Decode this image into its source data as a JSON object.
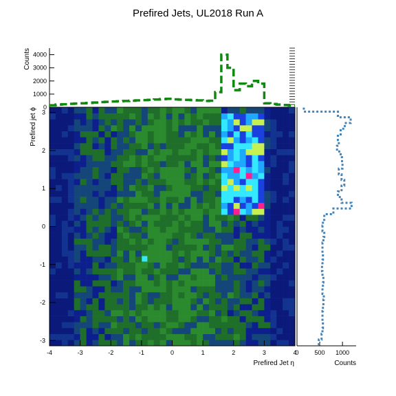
{
  "title": "Prefired Jets, UL2018 Run A",
  "colors": {
    "top_histogram": "#118811",
    "right_histogram": "#4682b4",
    "heatmap_low": "#0d1f8c",
    "heatmap_mid": "#1f6e2a",
    "heatmap_high": "#33e8ff",
    "heatmap_peak": "#ff1f8f"
  },
  "chart_data": [
    {
      "name": "eta-phi-map",
      "type": "heatmap",
      "xlabel": "Prefired Jet η",
      "ylabel": "Prefired jet ϕ",
      "xlim": [
        -4,
        4
      ],
      "ylim": [
        -3.14,
        3.14
      ],
      "x_ticks": [
        "-4",
        "-3",
        "-2",
        "-1",
        "0",
        "1",
        "2",
        "3",
        "4"
      ],
      "y_ticks": [
        "-3",
        "-2",
        "-1",
        "0",
        "1",
        "2",
        "3"
      ],
      "hot_region": {
        "eta": [
          1.5,
          3.0
        ],
        "phi": [
          0.35,
          2.95
        ]
      },
      "hot_spot": {
        "eta": -0.9,
        "phi": -0.85
      }
    },
    {
      "name": "eta-projection",
      "type": "line",
      "ylabel": "Counts",
      "ylim": [
        0,
        4500
      ],
      "y_ticks": [
        "0",
        "1000",
        "2000",
        "3000",
        "4000"
      ],
      "x": [
        -3.9,
        -3.7,
        -3.5,
        -3.3,
        -3.1,
        -2.9,
        -2.7,
        -2.5,
        -2.3,
        -2.1,
        -1.9,
        -1.7,
        -1.5,
        -1.3,
        -1.1,
        -0.9,
        -0.7,
        -0.5,
        -0.3,
        -0.1,
        0.1,
        0.3,
        0.5,
        0.7,
        0.9,
        1.1,
        1.3,
        1.5,
        1.7,
        1.9,
        2.1,
        2.3,
        2.5,
        2.7,
        2.9,
        3.1,
        3.3,
        3.5,
        3.7,
        3.9
      ],
      "values": [
        150,
        200,
        230,
        260,
        280,
        300,
        330,
        360,
        390,
        410,
        440,
        460,
        480,
        500,
        520,
        540,
        560,
        590,
        620,
        640,
        600,
        580,
        560,
        540,
        520,
        480,
        500,
        1150,
        4000,
        3000,
        1300,
        1800,
        1600,
        2000,
        1800,
        300,
        250,
        200,
        170,
        140
      ]
    },
    {
      "name": "phi-projection",
      "type": "line",
      "xlabel": "Counts",
      "xlim": [
        0,
        1300
      ],
      "x_ticks": [
        "0",
        "500",
        "1000"
      ],
      "phi": [
        -3.05,
        -2.9,
        -2.75,
        -2.6,
        -2.45,
        -2.3,
        -2.15,
        -2.0,
        -1.85,
        -1.7,
        -1.55,
        -1.4,
        -1.25,
        -1.1,
        -0.95,
        -0.8,
        -0.65,
        -0.5,
        -0.35,
        -0.2,
        -0.05,
        0.1,
        0.25,
        0.4,
        0.55,
        0.7,
        0.85,
        1.0,
        1.15,
        1.3,
        1.45,
        1.6,
        1.75,
        1.9,
        2.05,
        2.2,
        2.35,
        2.5,
        2.65,
        2.8,
        2.95,
        3.1
      ],
      "values": [
        480,
        540,
        560,
        570,
        560,
        560,
        570,
        580,
        590,
        560,
        570,
        580,
        560,
        550,
        560,
        570,
        560,
        560,
        580,
        600,
        560,
        570,
        600,
        800,
        1200,
        980,
        900,
        980,
        1040,
        980,
        920,
        1000,
        990,
        960,
        880,
        920,
        900,
        960,
        1050,
        1180,
        900,
        150
      ]
    }
  ]
}
